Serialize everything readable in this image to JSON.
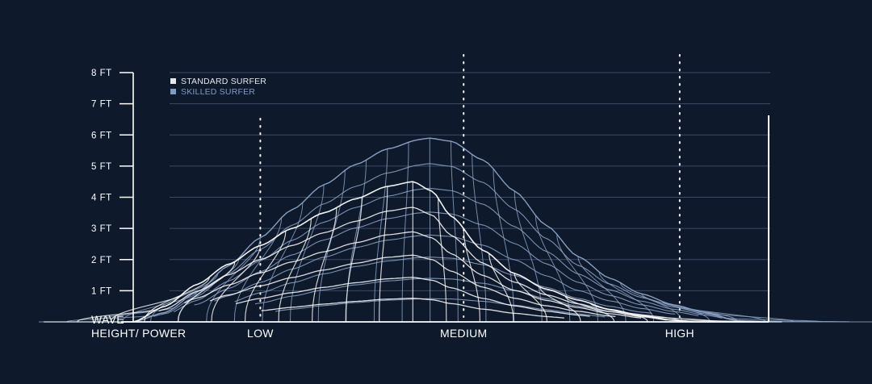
{
  "chart_data": {
    "type": "area",
    "title": "",
    "ylabel_line1": "WAVE",
    "ylabel_line2": "HEIGHT/ POWER",
    "y_ticks": [
      {
        "value": 1,
        "label": "1 FT"
      },
      {
        "value": 2,
        "label": "2 FT"
      },
      {
        "value": 3,
        "label": "3 FT"
      },
      {
        "value": 4,
        "label": "4 FT"
      },
      {
        "value": 5,
        "label": "5 FT"
      },
      {
        "value": 6,
        "label": "6 FT"
      },
      {
        "value": 7,
        "label": "7 FT"
      },
      {
        "value": 8,
        "label": "8 FT"
      }
    ],
    "ylim": [
      0,
      8
    ],
    "x_range": [
      0,
      1
    ],
    "categories": [
      {
        "label": "LOW",
        "x": 0.2
      },
      {
        "label": "MEDIUM",
        "x": 0.52
      },
      {
        "label": "HIGH",
        "x": 0.86
      }
    ],
    "grid": true,
    "legend_position": "top-left",
    "legend": [
      {
        "label": "STANDARD SURFER",
        "color": "#e6e8ec"
      },
      {
        "label": "SKILLED SURFER",
        "color": "#7f9bc4"
      }
    ],
    "series": [
      {
        "name": "SKILLED SURFER",
        "color": "#8fa6c8",
        "peak_x": 0.465,
        "peak_y": 5.9,
        "points": [
          [
            0.0,
            0.0
          ],
          [
            0.05,
            0.3
          ],
          [
            0.1,
            0.95
          ],
          [
            0.15,
            1.8
          ],
          [
            0.2,
            2.7
          ],
          [
            0.25,
            3.6
          ],
          [
            0.3,
            4.4
          ],
          [
            0.35,
            5.05
          ],
          [
            0.4,
            5.55
          ],
          [
            0.45,
            5.85
          ],
          [
            0.465,
            5.9
          ],
          [
            0.5,
            5.8
          ],
          [
            0.55,
            5.2
          ],
          [
            0.6,
            4.2
          ],
          [
            0.65,
            3.1
          ],
          [
            0.7,
            2.1
          ],
          [
            0.75,
            1.4
          ],
          [
            0.8,
            0.9
          ],
          [
            0.85,
            0.55
          ],
          [
            0.9,
            0.3
          ],
          [
            0.95,
            0.05
          ],
          [
            1.0,
            0.0
          ]
        ]
      },
      {
        "name": "STANDARD SURFER",
        "color": "#ffffff",
        "peak_x": 0.44,
        "peak_y": 4.5,
        "points": [
          [
            0.0,
            0.0
          ],
          [
            0.05,
            0.5
          ],
          [
            0.1,
            1.2
          ],
          [
            0.15,
            1.85
          ],
          [
            0.2,
            2.45
          ],
          [
            0.25,
            3.0
          ],
          [
            0.3,
            3.5
          ],
          [
            0.35,
            3.95
          ],
          [
            0.4,
            4.35
          ],
          [
            0.44,
            4.5
          ],
          [
            0.47,
            4.2
          ],
          [
            0.5,
            3.4
          ],
          [
            0.55,
            2.3
          ],
          [
            0.6,
            1.55
          ],
          [
            0.65,
            1.05
          ],
          [
            0.7,
            0.7
          ],
          [
            0.75,
            0.4
          ],
          [
            0.8,
            0.2
          ],
          [
            0.85,
            0.05
          ],
          [
            0.88,
            0.0
          ]
        ]
      }
    ]
  }
}
